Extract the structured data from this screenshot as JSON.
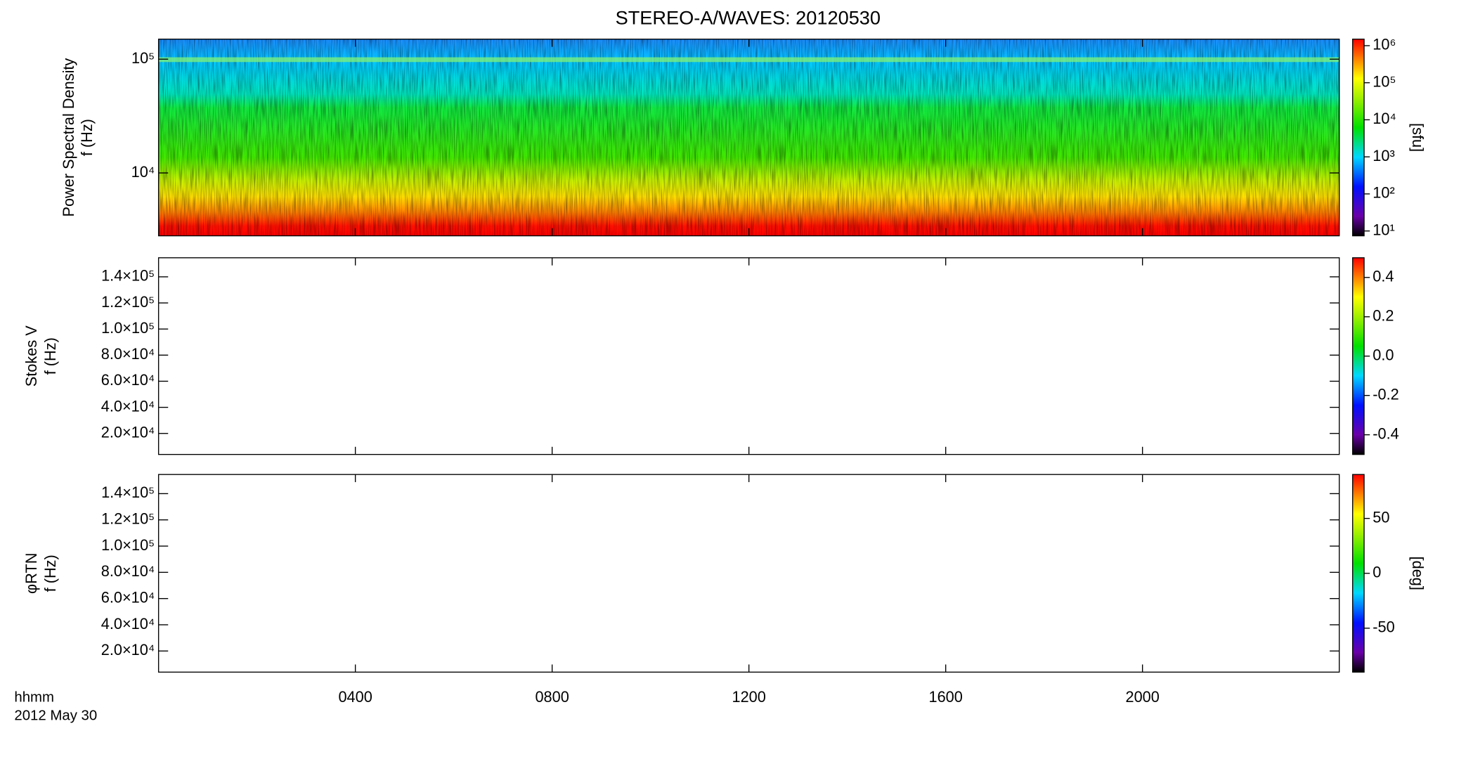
{
  "title": "STEREO-A/WAVES: 20120530",
  "x_label_lines": [
    "hhmm",
    "2012 May 30"
  ],
  "chart_data": [
    {
      "type": "heatmap",
      "ylabel": [
        "Power Spectral Density",
        "f (Hz)"
      ],
      "log_y": true,
      "ylim": [
        2800,
        150000
      ],
      "yticks": [
        {
          "value": 10000,
          "label": "10⁴"
        },
        {
          "value": 100000,
          "label": "10⁵"
        }
      ],
      "colorbar": {
        "log": true,
        "lim": [
          7.4,
          1500000
        ],
        "label": "[sfu]",
        "ticks": [
          {
            "value": 10,
            "label": "10¹"
          },
          {
            "value": 100,
            "label": "10²"
          },
          {
            "value": 1000,
            "label": "10³"
          },
          {
            "value": 10000,
            "label": "10⁴"
          },
          {
            "value": 100000,
            "label": "10⁵"
          },
          {
            "value": 1000000,
            "label": "10⁶"
          }
        ]
      }
    },
    {
      "type": "heatmap",
      "ylabel": [
        "Stokes V",
        "f (Hz)"
      ],
      "log_y": false,
      "ylim": [
        3900,
        154600
      ],
      "yticks": [
        {
          "value": 20000,
          "label": "2.0×10⁴"
        },
        {
          "value": 40000,
          "label": "4.0×10⁴"
        },
        {
          "value": 60000,
          "label": "6.0×10⁴"
        },
        {
          "value": 80000,
          "label": "8.0×10⁴"
        },
        {
          "value": 100000,
          "label": "1.0×10⁵"
        },
        {
          "value": 120000,
          "label": "1.2×10⁵"
        },
        {
          "value": 140000,
          "label": "1.4×10⁵"
        }
      ],
      "colorbar": {
        "log": false,
        "lim": [
          -0.5,
          0.5
        ],
        "ticks": [
          -0.4,
          -0.2,
          {
            "value": 0,
            "label": "0.0"
          },
          0.2,
          0.4
        ]
      }
    },
    {
      "type": "heatmap",
      "ylabel": [
        "φRTN",
        "f (Hz)"
      ],
      "log_y": false,
      "ylim": [
        3900,
        154600
      ],
      "yticks": [
        {
          "value": 20000,
          "label": "2.0×10⁴"
        },
        {
          "value": 40000,
          "label": "4.0×10⁴"
        },
        {
          "value": 60000,
          "label": "6.0×10⁴"
        },
        {
          "value": 80000,
          "label": "8.0×10⁴"
        },
        {
          "value": 100000,
          "label": "1.0×10⁵"
        },
        {
          "value": 120000,
          "label": "1.2×10⁵"
        },
        {
          "value": 140000,
          "label": "1.4×10⁵"
        }
      ],
      "colorbar": {
        "log": false,
        "lim": [
          -90,
          90
        ],
        "label": "[deg]",
        "ticks": [
          -50,
          0,
          50
        ]
      },
      "xlim": [
        0,
        24
      ],
      "xticks": [
        {
          "value": 4,
          "label": "0400"
        },
        {
          "value": 8,
          "label": "0800"
        },
        {
          "value": 12,
          "label": "1200"
        },
        {
          "value": 16,
          "label": "1600"
        },
        {
          "value": 20,
          "label": "2000"
        }
      ]
    }
  ]
}
